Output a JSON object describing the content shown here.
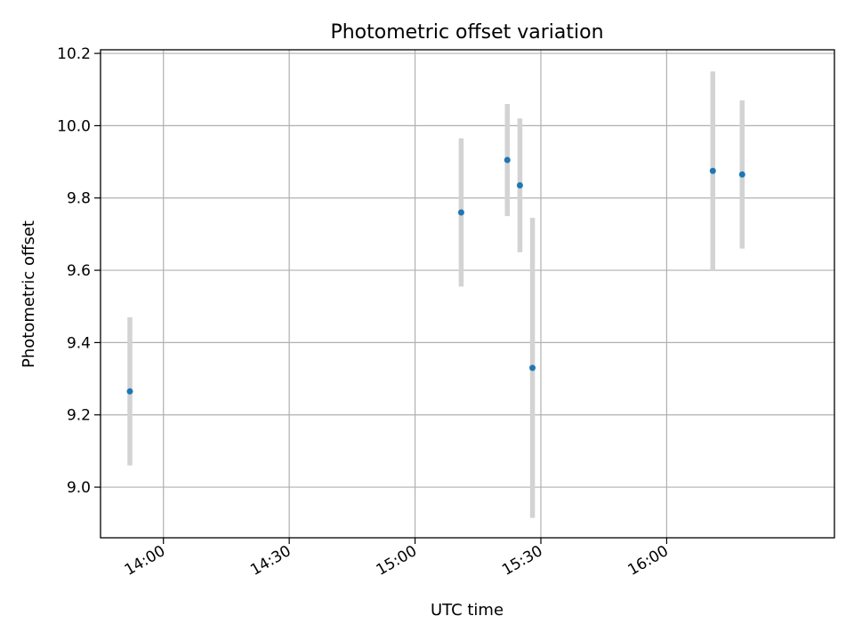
{
  "chart_data": {
    "type": "scatter",
    "title": "Photometric offset variation",
    "xlabel": "UTC time",
    "ylabel": "Photometric offset",
    "x_ticks": [
      "14:00",
      "14:30",
      "15:00",
      "15:30",
      "16:00"
    ],
    "y_ticks": [
      "9.0",
      "9.2",
      "9.4",
      "9.6",
      "9.8",
      "10.0",
      "10.2"
    ],
    "xlim": [
      "13:45",
      "16:40"
    ],
    "ylim": [
      8.86,
      10.21
    ],
    "grid": true,
    "points": [
      {
        "x": "13:52",
        "y": 9.265,
        "yerr": 0.205
      },
      {
        "x": "15:11",
        "y": 9.76,
        "yerr": 0.205
      },
      {
        "x": "15:22",
        "y": 9.905,
        "yerr": 0.155
      },
      {
        "x": "15:25",
        "y": 9.835,
        "yerr": 0.185
      },
      {
        "x": "15:28",
        "y": 9.33,
        "yerr": 0.415
      },
      {
        "x": "16:11",
        "y": 9.875,
        "yerr": 0.275
      },
      {
        "x": "16:18",
        "y": 9.865,
        "yerr": 0.205
      }
    ],
    "colors": {
      "point": "#1f77b4",
      "errorbar": "#d3d3d3",
      "grid": "#b0b0b0"
    }
  }
}
